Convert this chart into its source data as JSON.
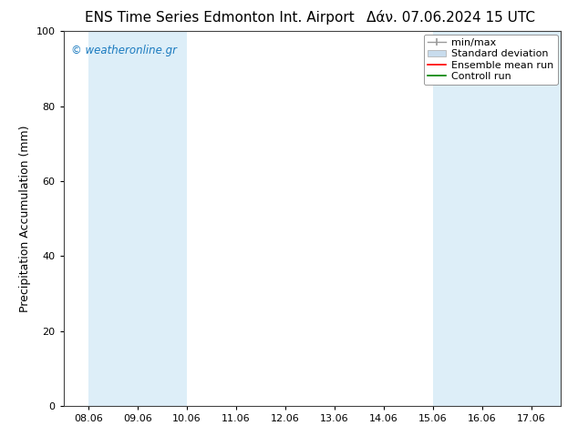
{
  "title_left": "ENS Time Series Edmonton Int. Airport",
  "title_right": "Δάν. 07.06.2024 15 UTC",
  "ylabel": "Precipitation Accumulation (mm)",
  "watermark": "© weatheronline.gr",
  "watermark_color": "#1a7abf",
  "ylim": [
    0,
    100
  ],
  "yticks": [
    0,
    20,
    40,
    60,
    80,
    100
  ],
  "xtick_labels": [
    "08.06",
    "09.06",
    "10.06",
    "11.06",
    "12.06",
    "13.06",
    "14.06",
    "15.06",
    "16.06",
    "17.06"
  ],
  "shaded_color": "#ddeef8",
  "shaded_ranges": [
    [
      0.0,
      2.0
    ],
    [
      7.0,
      9.0
    ],
    [
      9.0,
      9.6
    ]
  ],
  "xlim": [
    -0.5,
    9.6
  ],
  "legend_entries": [
    {
      "label": "min/max",
      "color": "#999999",
      "type": "errorbar"
    },
    {
      "label": "Standard deviation",
      "color": "#c8dced",
      "type": "fill"
    },
    {
      "label": "Ensemble mean run",
      "color": "#ff0000",
      "type": "line"
    },
    {
      "label": "Controll run",
      "color": "#008000",
      "type": "line"
    }
  ],
  "bg_color": "#ffffff",
  "plot_bg_color": "#ffffff",
  "tick_label_fontsize": 8,
  "axis_label_fontsize": 9,
  "title_fontsize": 11,
  "legend_fontsize": 8
}
